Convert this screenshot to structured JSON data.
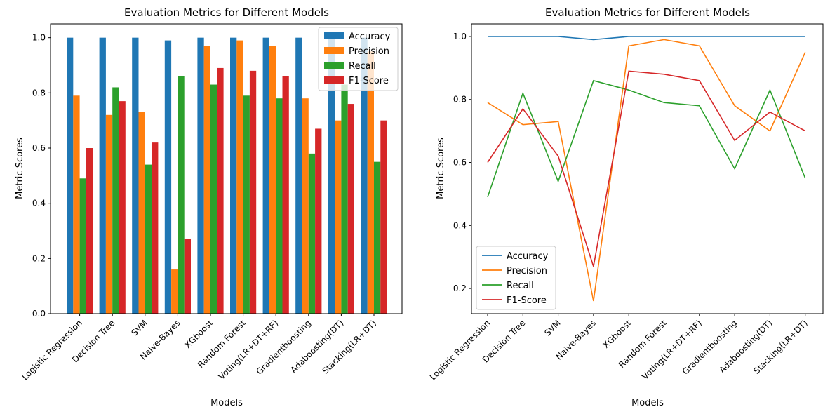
{
  "chart_data": [
    {
      "type": "bar",
      "title": "Evaluation Metrics for Different Models",
      "xlabel": "Models",
      "ylabel": "Metric Scores",
      "ylim": [
        0,
        1.05
      ],
      "yticks": [
        "0.0",
        "0.2",
        "0.4",
        "0.6",
        "0.8",
        "1.0"
      ],
      "legend_position": "top-right",
      "grid": false,
      "categories": [
        "Logistic Regression",
        "Decision Tree",
        "SVM",
        "Naive-Bayes",
        "XGboost",
        "Random Forest",
        "Voting(LR+DT+RF)",
        "Gradientboosting",
        "Adaboosting(DT)",
        "Stacking(LR+DT)"
      ],
      "series": [
        {
          "name": "Accuracy",
          "color": "#1f77b4",
          "values": [
            1.0,
            1.0,
            1.0,
            0.99,
            1.0,
            1.0,
            1.0,
            1.0,
            1.0,
            1.0
          ]
        },
        {
          "name": "Precision",
          "color": "#ff7f0e",
          "values": [
            0.79,
            0.72,
            0.73,
            0.16,
            0.97,
            0.99,
            0.97,
            0.78,
            0.7,
            0.95
          ]
        },
        {
          "name": "Recall",
          "color": "#2ca02c",
          "values": [
            0.49,
            0.82,
            0.54,
            0.86,
            0.83,
            0.79,
            0.78,
            0.58,
            0.83,
            0.55
          ]
        },
        {
          "name": "F1-Score",
          "color": "#d62728",
          "values": [
            0.6,
            0.77,
            0.62,
            0.27,
            0.89,
            0.88,
            0.86,
            0.67,
            0.76,
            0.7
          ]
        }
      ]
    },
    {
      "type": "line",
      "title": "Evaluation Metrics for Different Models",
      "xlabel": "Models",
      "ylabel": "Metric Scores",
      "ylim": [
        0.12,
        1.04
      ],
      "yticks": [
        "0.2",
        "0.4",
        "0.6",
        "0.8",
        "1.0"
      ],
      "legend_position": "bottom-left",
      "grid": false,
      "categories": [
        "Logistic Regression",
        "Decision Tree",
        "SVM",
        "Naive-Bayes",
        "XGboost",
        "Random Forest",
        "Voting(LR+DT+RF)",
        "Gradientboosting",
        "Adaboosting(DT)",
        "Stacking(LR+DT)"
      ],
      "series": [
        {
          "name": "Accuracy",
          "color": "#1f77b4",
          "values": [
            1.0,
            1.0,
            1.0,
            0.99,
            1.0,
            1.0,
            1.0,
            1.0,
            1.0,
            1.0
          ]
        },
        {
          "name": "Precision",
          "color": "#ff7f0e",
          "values": [
            0.79,
            0.72,
            0.73,
            0.16,
            0.97,
            0.99,
            0.97,
            0.78,
            0.7,
            0.95
          ]
        },
        {
          "name": "Recall",
          "color": "#2ca02c",
          "values": [
            0.49,
            0.82,
            0.54,
            0.86,
            0.83,
            0.79,
            0.78,
            0.58,
            0.83,
            0.55
          ]
        },
        {
          "name": "F1-Score",
          "color": "#d62728",
          "values": [
            0.6,
            0.77,
            0.62,
            0.27,
            0.89,
            0.88,
            0.86,
            0.67,
            0.76,
            0.7
          ]
        }
      ]
    }
  ]
}
